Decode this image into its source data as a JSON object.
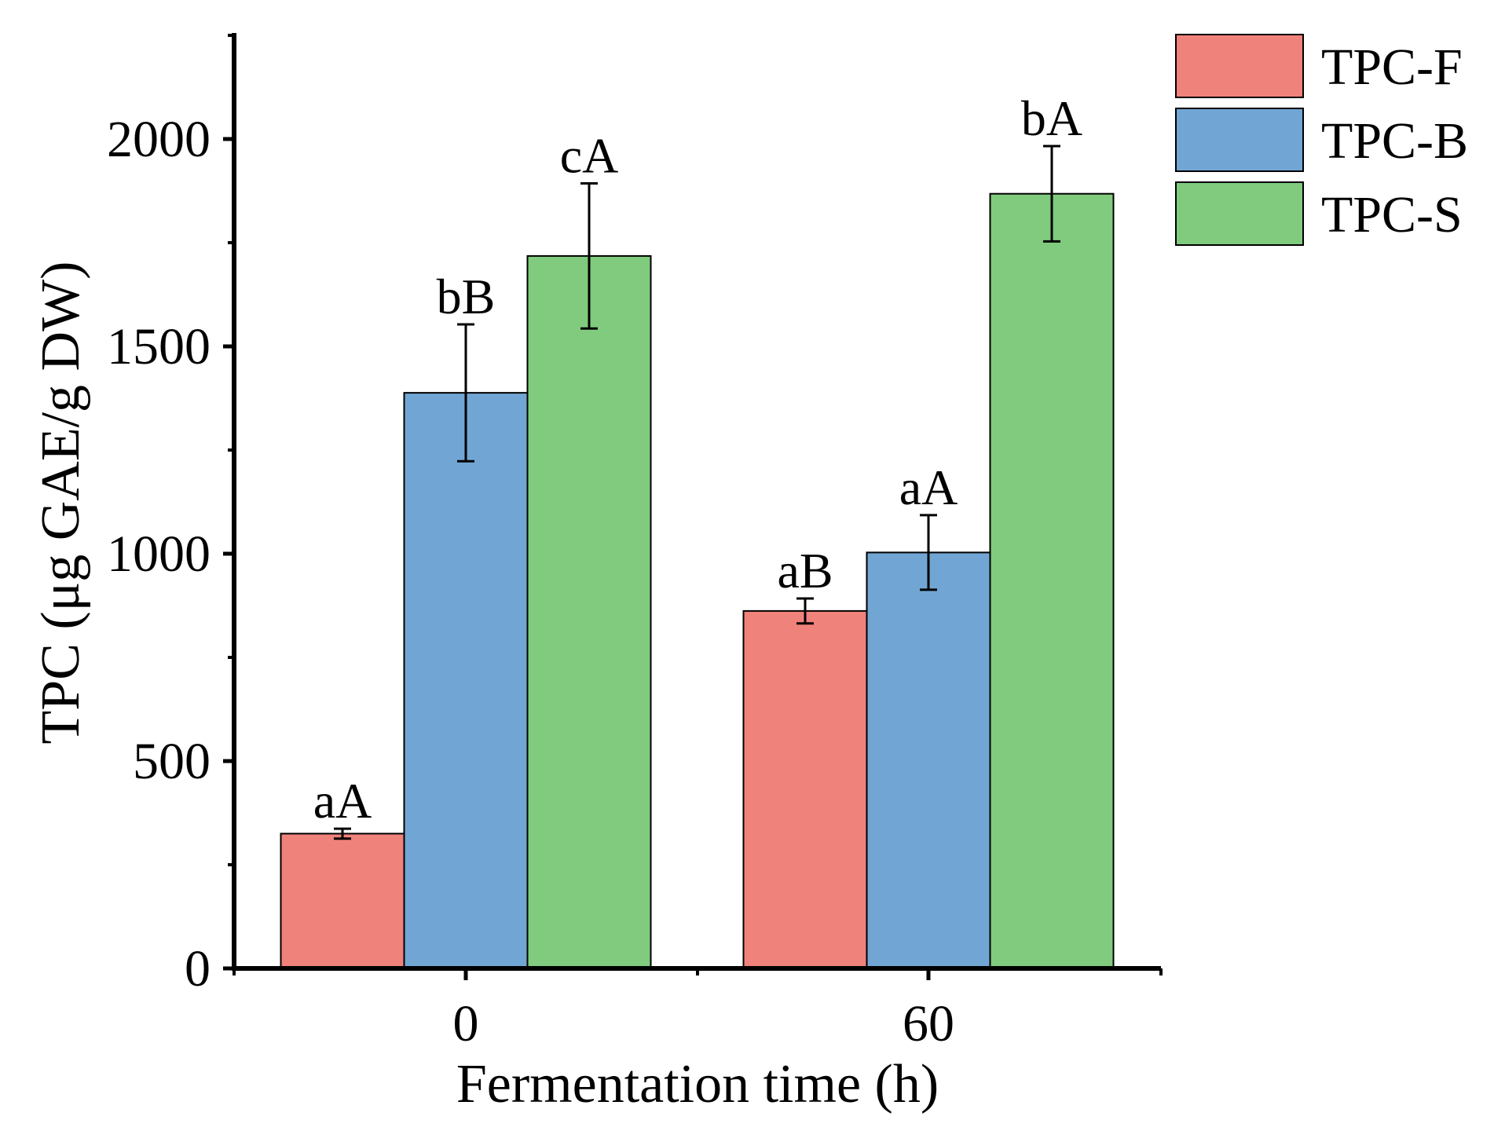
{
  "chart_data": {
    "type": "bar",
    "title": "",
    "xlabel": "Fermentation time (h)",
    "ylabel": "TPC (μg GAE/g DW)",
    "categories": [
      "0",
      "60"
    ],
    "ylim": [
      0,
      2250
    ],
    "yticks": [
      0,
      500,
      1000,
      1500,
      2000
    ],
    "minor_yticks": [
      250,
      750,
      1250,
      1750,
      2250
    ],
    "grid": false,
    "legend_position": "top-right outside",
    "series": [
      {
        "name": "TPC-F",
        "color": "#F0827C",
        "values": [
          325,
          862
        ],
        "errors": [
          12,
          30
        ],
        "labels": [
          "aA",
          "aB"
        ]
      },
      {
        "name": "TPC-B",
        "color": "#71A6D4",
        "values": [
          1388,
          1003
        ],
        "errors": [
          165,
          90
        ],
        "labels": [
          "bB",
          "aA"
        ]
      },
      {
        "name": "TPC-S",
        "color": "#80CB7D",
        "values": [
          1718,
          1868
        ],
        "errors": [
          175,
          115
        ],
        "labels": [
          "cA",
          "bA"
        ]
      }
    ]
  }
}
